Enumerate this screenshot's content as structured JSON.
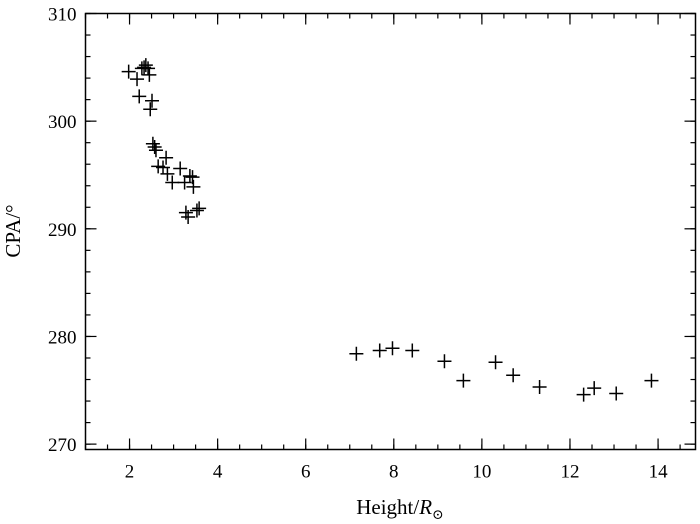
{
  "chart_data": {
    "type": "scatter",
    "title": "",
    "xlabel": "Height/",
    "xlabel_symbol": "R",
    "xlabel_subscript": "⊙",
    "ylabel": "CPA/°",
    "xlim": [
      1.0,
      14.85
    ],
    "ylim": [
      269.5,
      310.0
    ],
    "xticks": [
      2,
      4,
      6,
      8,
      10,
      12,
      14
    ],
    "yticks": [
      270,
      280,
      290,
      300,
      310
    ],
    "xtick_labels": [
      "2",
      "4",
      "6",
      "8",
      "10",
      "12",
      "14"
    ],
    "ytick_labels": [
      "270",
      "280",
      "290",
      "300",
      "310"
    ],
    "x_minor_step": 0.5,
    "y_minor_step": 2,
    "marker": "plus",
    "color": "#000000",
    "grid": false,
    "legend": "none",
    "points": [
      {
        "x": 1.98,
        "y": 304.6
      },
      {
        "x": 2.17,
        "y": 303.9
      },
      {
        "x": 2.22,
        "y": 302.3
      },
      {
        "x": 2.28,
        "y": 304.9
      },
      {
        "x": 2.33,
        "y": 305.0
      },
      {
        "x": 2.37,
        "y": 305.2
      },
      {
        "x": 2.42,
        "y": 304.9
      },
      {
        "x": 2.45,
        "y": 304.3
      },
      {
        "x": 2.47,
        "y": 301.1
      },
      {
        "x": 2.51,
        "y": 301.9
      },
      {
        "x": 2.53,
        "y": 297.9
      },
      {
        "x": 2.57,
        "y": 297.6
      },
      {
        "x": 2.6,
        "y": 297.3
      },
      {
        "x": 2.65,
        "y": 295.8
      },
      {
        "x": 2.76,
        "y": 295.7
      },
      {
        "x": 2.83,
        "y": 296.6
      },
      {
        "x": 2.86,
        "y": 295.1
      },
      {
        "x": 2.97,
        "y": 294.3
      },
      {
        "x": 3.15,
        "y": 295.6
      },
      {
        "x": 3.25,
        "y": 294.3
      },
      {
        "x": 3.28,
        "y": 291.5
      },
      {
        "x": 3.33,
        "y": 291.1
      },
      {
        "x": 3.37,
        "y": 294.9
      },
      {
        "x": 3.43,
        "y": 294.8
      },
      {
        "x": 3.45,
        "y": 293.9
      },
      {
        "x": 3.53,
        "y": 291.7
      },
      {
        "x": 3.58,
        "y": 291.9
      },
      {
        "x": 7.15,
        "y": 278.4
      },
      {
        "x": 7.68,
        "y": 278.7
      },
      {
        "x": 7.97,
        "y": 278.9
      },
      {
        "x": 8.42,
        "y": 278.7
      },
      {
        "x": 9.15,
        "y": 277.7
      },
      {
        "x": 9.58,
        "y": 275.9
      },
      {
        "x": 10.31,
        "y": 277.6
      },
      {
        "x": 10.71,
        "y": 276.4
      },
      {
        "x": 11.31,
        "y": 275.3
      },
      {
        "x": 12.31,
        "y": 274.6
      },
      {
        "x": 12.55,
        "y": 275.2
      },
      {
        "x": 13.05,
        "y": 274.7
      },
      {
        "x": 13.85,
        "y": 275.9
      }
    ]
  }
}
